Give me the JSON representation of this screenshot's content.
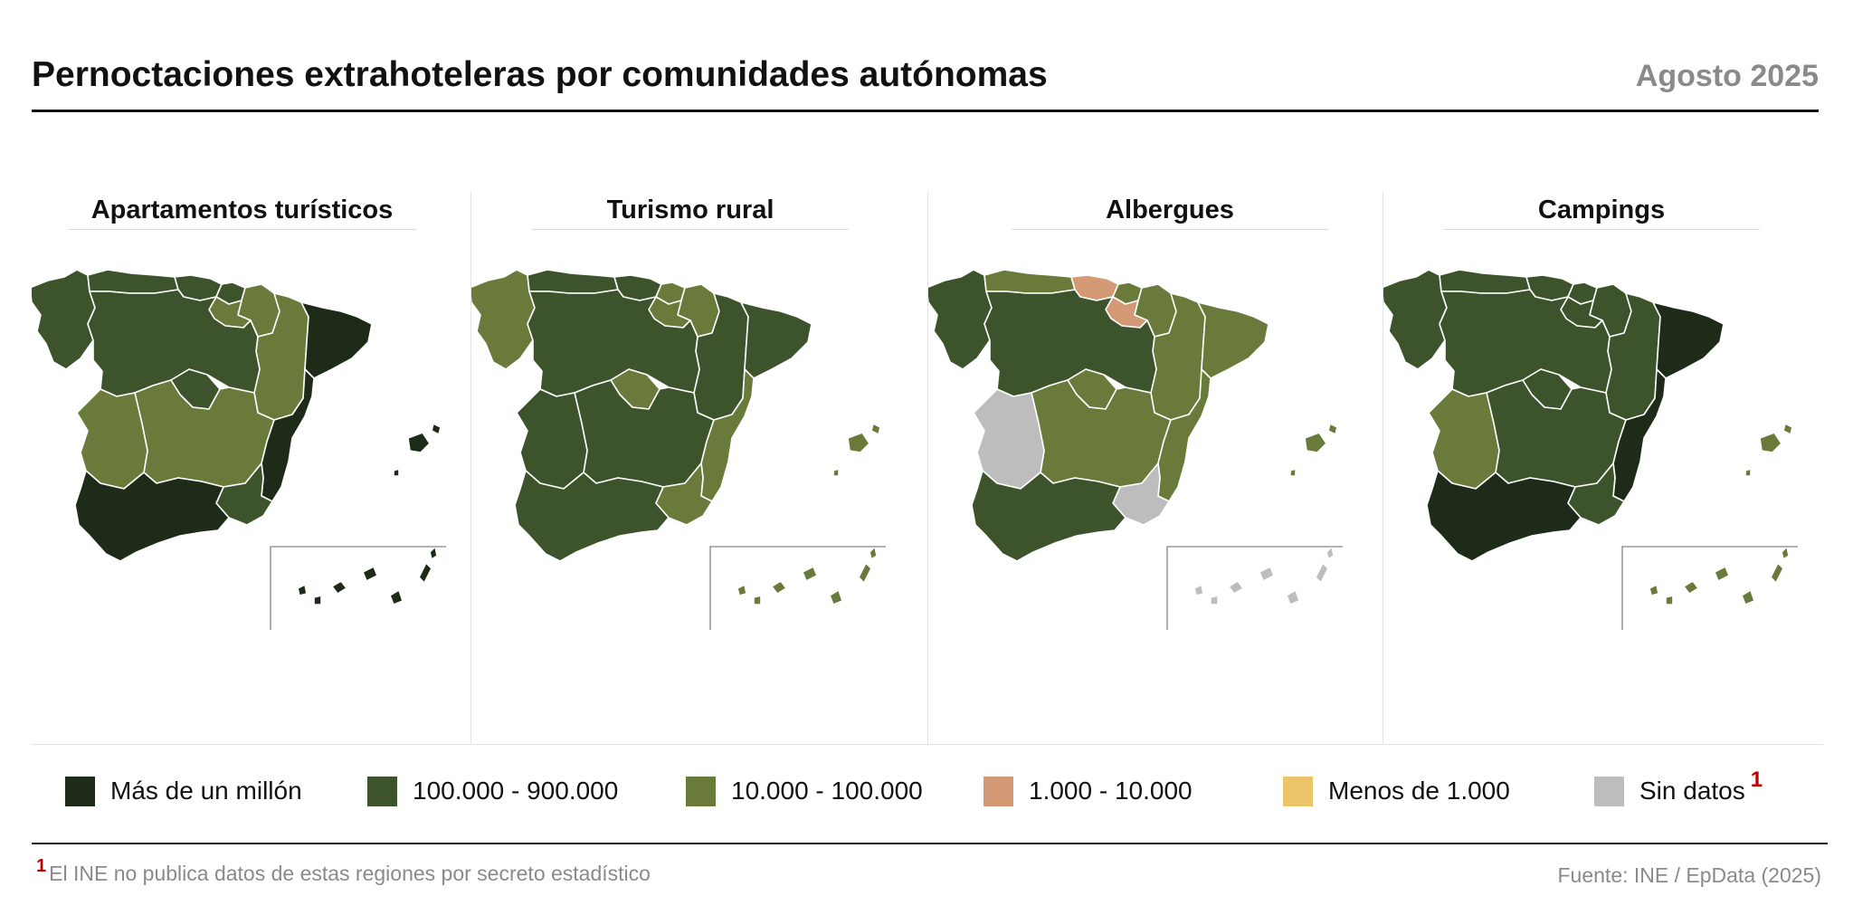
{
  "header": {
    "title": "Pernoctaciones extrahoteleras por comunidades autónomas",
    "date": "Agosto 2025"
  },
  "colors": {
    "c1": "#1f2b19",
    "c2": "#3c532b",
    "c3": "#697a3a",
    "c4": "#d39a75",
    "c5": "#ecc46a",
    "c6": "#bdbdbd"
  },
  "legend": [
    {
      "label": "Más de un millón",
      "color": "#1f2b19"
    },
    {
      "label": "100.000 - 900.000",
      "color": "#3c532b"
    },
    {
      "label": "10.000 - 100.000",
      "color": "#697a3a"
    },
    {
      "label": "1.000 - 10.000",
      "color": "#d39a75"
    },
    {
      "label": "Menos de 1.000",
      "color": "#ecc46a"
    },
    {
      "label": "Sin datos",
      "color": "#bdbdbd",
      "note_marker": "1"
    }
  ],
  "maps": [
    {
      "title": "Apartamentos turísticos",
      "regions": {
        "galicia": "c2",
        "asturias": "c2",
        "cantabria": "c2",
        "pais_vasco": "c2",
        "navarra": "c3",
        "la_rioja": "c3",
        "aragon": "c3",
        "cataluna": "c1",
        "castilla_leon": "c2",
        "madrid": "c2",
        "castilla_la_mancha": "c3",
        "extremadura": "c3",
        "valencia": "c1",
        "murcia": "c2",
        "andalucia": "c1",
        "baleares": "c1",
        "canarias": "c1"
      }
    },
    {
      "title": "Turismo rural",
      "regions": {
        "galicia": "c3",
        "asturias": "c2",
        "cantabria": "c2",
        "pais_vasco": "c3",
        "navarra": "c3",
        "la_rioja": "c3",
        "aragon": "c2",
        "cataluna": "c2",
        "castilla_leon": "c2",
        "madrid": "c3",
        "castilla_la_mancha": "c2",
        "extremadura": "c2",
        "valencia": "c3",
        "murcia": "c3",
        "andalucia": "c2",
        "baleares": "c3",
        "canarias": "c3"
      }
    },
    {
      "title": "Albergues",
      "regions": {
        "galicia": "c2",
        "asturias": "c3",
        "cantabria": "c4",
        "pais_vasco": "c3",
        "navarra": "c3",
        "la_rioja": "c4",
        "aragon": "c3",
        "cataluna": "c3",
        "castilla_leon": "c2",
        "madrid": "c3",
        "castilla_la_mancha": "c3",
        "extremadura": "c6",
        "valencia": "c3",
        "murcia": "c6",
        "andalucia": "c2",
        "baleares": "c3",
        "canarias": "c6"
      }
    },
    {
      "title": "Campings",
      "regions": {
        "galicia": "c2",
        "asturias": "c2",
        "cantabria": "c2",
        "pais_vasco": "c2",
        "navarra": "c2",
        "la_rioja": "c2",
        "aragon": "c2",
        "cataluna": "c1",
        "castilla_leon": "c2",
        "madrid": "c2",
        "castilla_la_mancha": "c2",
        "extremadura": "c3",
        "valencia": "c1",
        "murcia": "c2",
        "andalucia": "c1",
        "baleares": "c3",
        "canarias": "c3"
      }
    }
  ],
  "footer": {
    "note_marker": "1",
    "note": "El INE no publica datos de estas regiones por secreto estadístico",
    "source": "Fuente: INE / EpData (2025)"
  }
}
